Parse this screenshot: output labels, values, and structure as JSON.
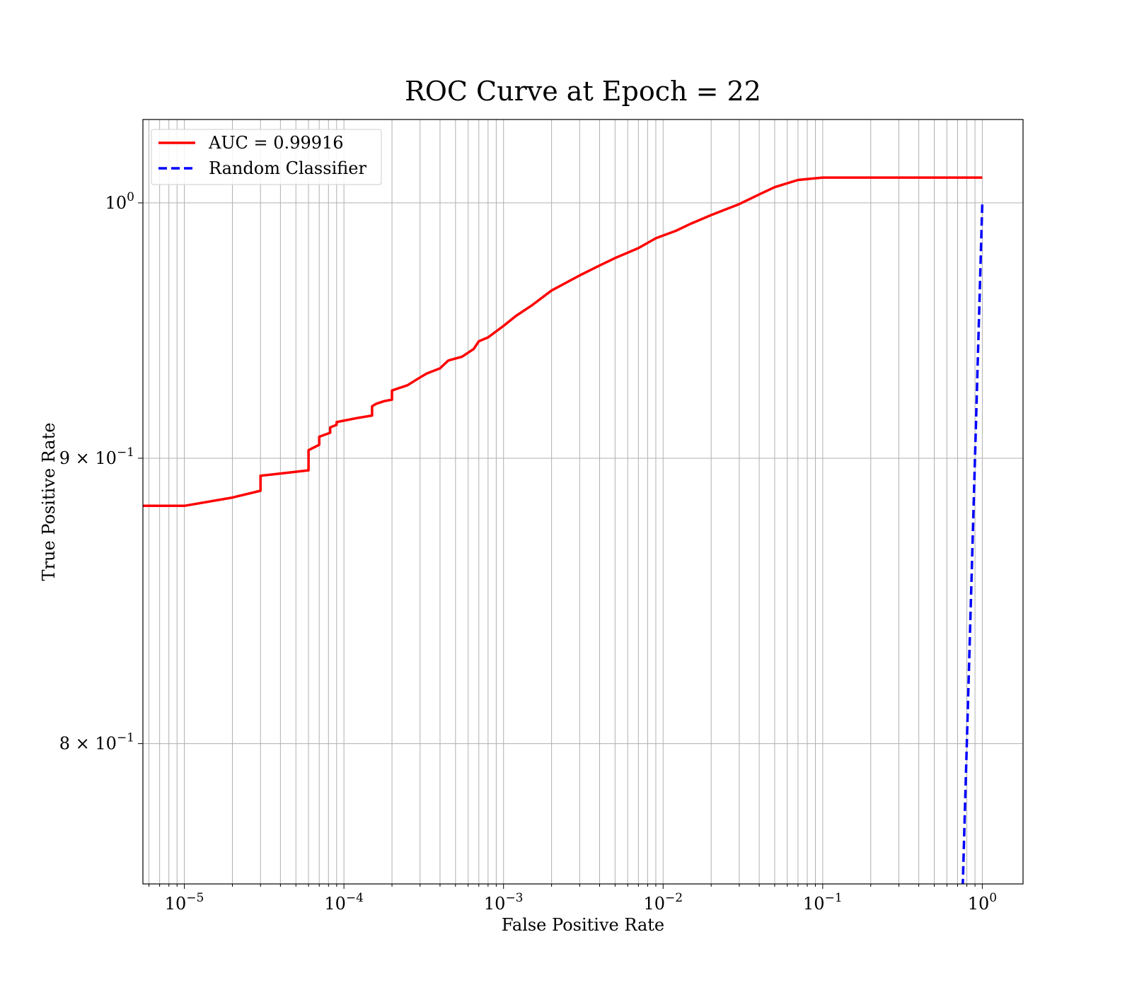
{
  "chart_data": {
    "type": "line",
    "title": "ROC Curve at Epoch = 22",
    "xlabel": "False Positive Rate",
    "ylabel": "True Positive Rate",
    "xscale": "log",
    "yscale": "log",
    "xlim": [
      5.5e-06,
      1.8
    ],
    "ylim": [
      0.755,
      1.035
    ],
    "grid": true,
    "grid_minor": true,
    "legend_position": "top-left",
    "x_ticks": [
      {
        "value": 1e-05,
        "base": "10",
        "exp": "−5"
      },
      {
        "value": 0.0001,
        "base": "10",
        "exp": "−4"
      },
      {
        "value": 0.001,
        "base": "10",
        "exp": "−3"
      },
      {
        "value": 0.01,
        "base": "10",
        "exp": "−2"
      },
      {
        "value": 0.1,
        "base": "10",
        "exp": "−1"
      },
      {
        "value": 1,
        "base": "10",
        "exp": "0"
      }
    ],
    "y_ticks": [
      {
        "value": 1.0,
        "base": "10",
        "exp": "0"
      },
      {
        "value": 0.9,
        "base": "9 × 10",
        "exp": "−1"
      },
      {
        "value": 0.8,
        "base": "8 × 10",
        "exp": "−1"
      }
    ],
    "series": [
      {
        "name": "AUC = 0.99916",
        "color": "#ff0000",
        "style": "solid",
        "x": [
          5.5e-06,
          1e-05,
          2e-05,
          3e-05,
          3e-05,
          6e-05,
          6e-05,
          7e-05,
          7e-05,
          8.2e-05,
          8.2e-05,
          9e-05,
          9e-05,
          0.00012,
          0.00015,
          0.00015,
          0.00016,
          0.00018,
          0.0002,
          0.0002,
          0.00025,
          0.0003,
          0.00033,
          0.0004,
          0.00045,
          0.00055,
          0.00065,
          0.0007,
          0.0008,
          0.001,
          0.0012,
          0.0015,
          0.002,
          0.003,
          0.004,
          0.005,
          0.007,
          0.009,
          0.012,
          0.015,
          0.02,
          0.03,
          0.04,
          0.05,
          0.07,
          0.1,
          1.0
        ],
        "y": [
          0.8825,
          0.8825,
          0.8855,
          0.888,
          0.8935,
          0.8955,
          0.903,
          0.905,
          0.908,
          0.9095,
          0.9115,
          0.9125,
          0.9135,
          0.915,
          0.916,
          0.9195,
          0.9205,
          0.9215,
          0.922,
          0.9255,
          0.9275,
          0.9305,
          0.932,
          0.934,
          0.937,
          0.9385,
          0.9415,
          0.9445,
          0.946,
          0.9505,
          0.9545,
          0.9585,
          0.9645,
          0.9705,
          0.9745,
          0.9775,
          0.9815,
          0.9855,
          0.9885,
          0.9915,
          0.995,
          0.9995,
          1.0035,
          1.0065,
          1.0095,
          1.0105,
          1.0105
        ]
      },
      {
        "name": "Random Classifier",
        "color": "#0000ff",
        "style": "dashed",
        "x": [
          0.75,
          1.0
        ],
        "y": [
          0.75,
          1.0
        ]
      }
    ]
  }
}
